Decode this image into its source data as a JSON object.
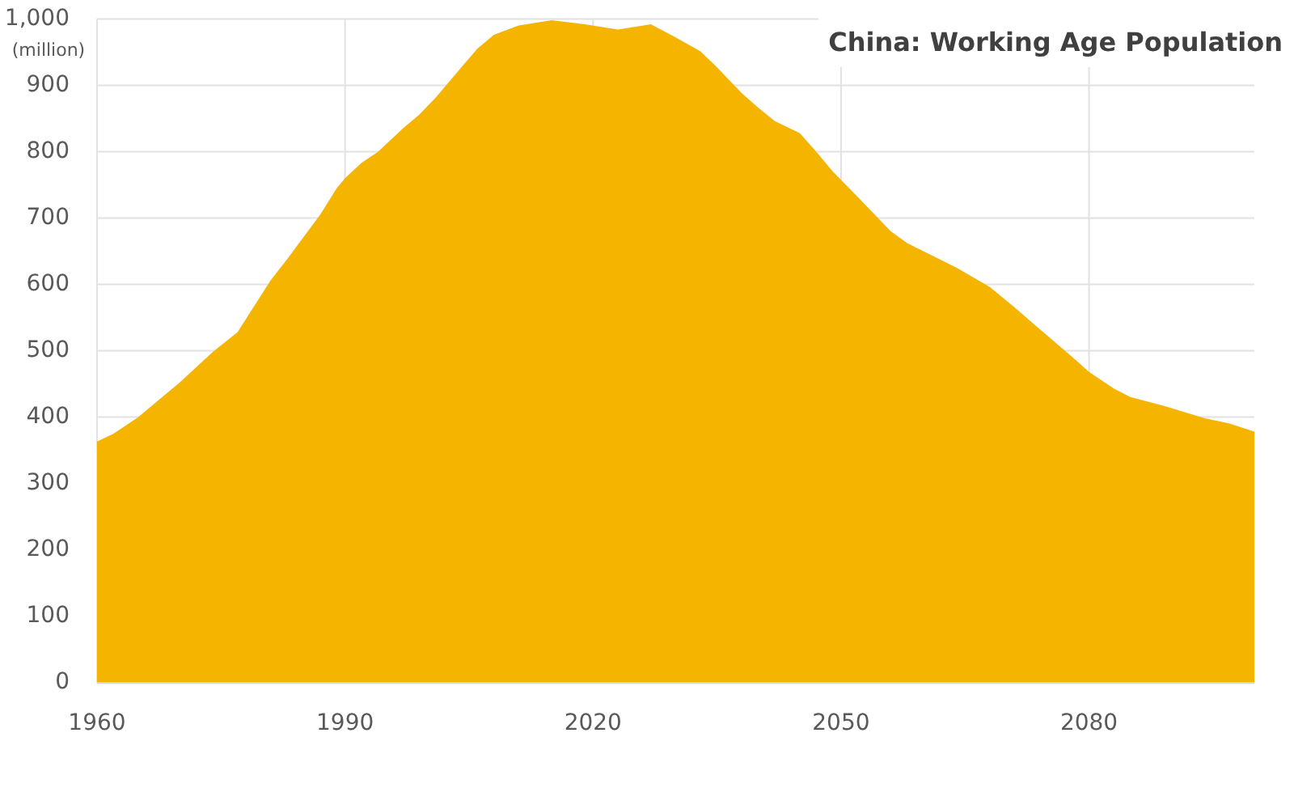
{
  "chart_data": {
    "type": "area",
    "title": "China: Working Age Population",
    "ylabel": "(million)",
    "x": [
      1960,
      1962,
      1965,
      1970,
      1974,
      1977,
      1981,
      1983,
      1987,
      1989,
      1990,
      1992,
      1994,
      1997,
      1999,
      2001,
      2004,
      2006,
      2008,
      2011,
      2015,
      2019,
      2023,
      2027,
      2030,
      2033,
      2035,
      2038,
      2040,
      2042,
      2045,
      2047,
      2049,
      2052,
      2056,
      2058,
      2064,
      2068,
      2071,
      2075,
      2078,
      2080,
      2083,
      2085,
      2089,
      2094,
      2097,
      2100
    ],
    "values": [
      363,
      375,
      400,
      452,
      498,
      528,
      606,
      638,
      705,
      745,
      760,
      783,
      800,
      835,
      856,
      882,
      926,
      955,
      976,
      990,
      998,
      992,
      984,
      992,
      972,
      951,
      927,
      888,
      866,
      846,
      828,
      800,
      770,
      732,
      680,
      662,
      625,
      596,
      565,
      522,
      490,
      468,
      443,
      430,
      417,
      398,
      390,
      378
    ],
    "color": "#f4b400",
    "xlim": [
      1960,
      2100
    ],
    "ylim": [
      0,
      1000
    ],
    "xticks": [
      1960,
      1990,
      2020,
      2050,
      2080
    ],
    "yticks": [
      0,
      100,
      200,
      300,
      400,
      500,
      600,
      700,
      800,
      900,
      {
        "value": 1000,
        "label": "1,000"
      }
    ],
    "grid": true
  }
}
